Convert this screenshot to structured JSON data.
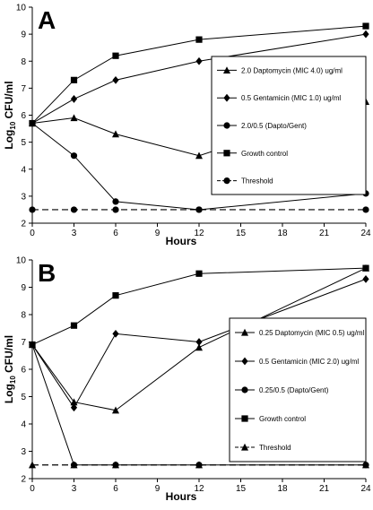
{
  "chart_data": [
    {
      "type": "line",
      "panel_label": "A",
      "xlabel": "Hours",
      "ylabel_prefix": "Log",
      "ylabel_sub": "10",
      "ylabel_suffix": " CFU/ml",
      "xlim": [
        0,
        24
      ],
      "ylim": [
        2,
        10
      ],
      "xticks": [
        0,
        3,
        6,
        9,
        12,
        15,
        18,
        21,
        24
      ],
      "yticks": [
        2,
        3,
        4,
        5,
        6,
        7,
        8,
        9,
        10
      ],
      "grid": false,
      "legend_position": "right",
      "series": [
        {
          "name": "2.0 Daptomycin (MIC 4.0) ug/ml",
          "marker": "triangle",
          "dashed": false,
          "points": [
            [
              0,
              5.7
            ],
            [
              3,
              5.9
            ],
            [
              6,
              5.3
            ],
            [
              12,
              4.5
            ],
            [
              24,
              6.5
            ]
          ]
        },
        {
          "name": "0.5 Gentamicin (MIC 1.0) ug/ml",
          "marker": "diamond",
          "dashed": false,
          "points": [
            [
              0,
              5.7
            ],
            [
              3,
              6.6
            ],
            [
              6,
              7.3
            ],
            [
              12,
              8.0
            ],
            [
              24,
              9.0
            ]
          ]
        },
        {
          "name": "2.0/0.5 (Dapto/Gent)",
          "marker": "circle",
          "dashed": false,
          "points": [
            [
              0,
              5.7
            ],
            [
              3,
              4.5
            ],
            [
              6,
              2.8
            ],
            [
              12,
              2.5
            ],
            [
              24,
              3.1
            ]
          ]
        },
        {
          "name": "Growth control",
          "marker": "square",
          "dashed": false,
          "points": [
            [
              0,
              5.7
            ],
            [
              3,
              7.3
            ],
            [
              6,
              8.2
            ],
            [
              12,
              8.8
            ],
            [
              24,
              9.3
            ]
          ]
        },
        {
          "name": "Threshold",
          "marker": "circle",
          "dashed": true,
          "points": [
            [
              0,
              2.5
            ],
            [
              3,
              2.5
            ],
            [
              6,
              2.5
            ],
            [
              12,
              2.5
            ],
            [
              24,
              2.5
            ]
          ]
        }
      ]
    },
    {
      "type": "line",
      "panel_label": "B",
      "xlabel": "Hours",
      "ylabel_prefix": "Log",
      "ylabel_sub": "10",
      "ylabel_suffix": " CFU/ml",
      "xlim": [
        0,
        24
      ],
      "ylim": [
        2,
        10
      ],
      "xticks": [
        0,
        3,
        6,
        9,
        12,
        15,
        18,
        21,
        24
      ],
      "yticks": [
        2,
        3,
        4,
        5,
        6,
        7,
        8,
        9,
        10
      ],
      "grid": false,
      "legend_position": "right",
      "series": [
        {
          "name": "0.25 Daptomycin (MIC 0.5) ug/ml",
          "marker": "triangle",
          "dashed": false,
          "points": [
            [
              0,
              6.9
            ],
            [
              3,
              4.8
            ],
            [
              6,
              4.5
            ],
            [
              12,
              6.8
            ],
            [
              24,
              9.7
            ]
          ]
        },
        {
          "name": "0.5 Gentamicin (MIC 2.0) ug/ml",
          "marker": "diamond",
          "dashed": false,
          "points": [
            [
              0,
              6.9
            ],
            [
              3,
              4.6
            ],
            [
              6,
              7.3
            ],
            [
              12,
              7.0
            ],
            [
              24,
              9.3
            ]
          ]
        },
        {
          "name": "0.25/0.5 (Dapto/Gent)",
          "marker": "circle",
          "dashed": false,
          "points": [
            [
              0,
              6.9
            ],
            [
              3,
              2.5
            ],
            [
              6,
              2.5
            ],
            [
              12,
              2.5
            ],
            [
              24,
              2.5
            ]
          ]
        },
        {
          "name": "Growth control",
          "marker": "square",
          "dashed": false,
          "points": [
            [
              0,
              6.9
            ],
            [
              3,
              7.6
            ],
            [
              6,
              8.7
            ],
            [
              12,
              9.5
            ],
            [
              24,
              9.7
            ]
          ]
        },
        {
          "name": "Threshold",
          "marker": "triangle",
          "dashed": true,
          "points": [
            [
              0,
              2.5
            ],
            [
              3,
              2.5
            ],
            [
              6,
              2.5
            ],
            [
              12,
              2.5
            ],
            [
              24,
              2.5
            ]
          ]
        }
      ]
    }
  ]
}
